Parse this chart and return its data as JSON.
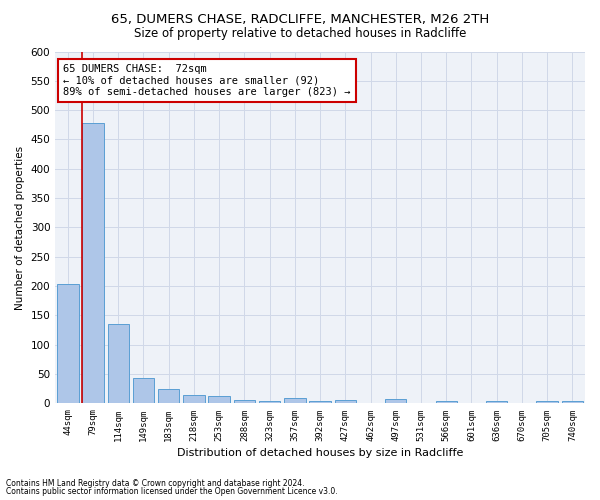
{
  "title_line1": "65, DUMERS CHASE, RADCLIFFE, MANCHESTER, M26 2TH",
  "title_line2": "Size of property relative to detached houses in Radcliffe",
  "xlabel": "Distribution of detached houses by size in Radcliffe",
  "ylabel": "Number of detached properties",
  "footnote1": "Contains HM Land Registry data © Crown copyright and database right 2024.",
  "footnote2": "Contains public sector information licensed under the Open Government Licence v3.0.",
  "categories": [
    "44sqm",
    "79sqm",
    "114sqm",
    "149sqm",
    "183sqm",
    "218sqm",
    "253sqm",
    "288sqm",
    "323sqm",
    "357sqm",
    "392sqm",
    "427sqm",
    "462sqm",
    "497sqm",
    "531sqm",
    "566sqm",
    "601sqm",
    "636sqm",
    "670sqm",
    "705sqm",
    "740sqm"
  ],
  "values": [
    203,
    478,
    135,
    43,
    25,
    15,
    12,
    6,
    5,
    10,
    5,
    6,
    0,
    8,
    0,
    5,
    0,
    5,
    0,
    5,
    5
  ],
  "bar_color": "#aec6e8",
  "bar_edge_color": "#5a9fd4",
  "annotation_title": "65 DUMERS CHASE:  72sqm",
  "annotation_line2": "← 10% of detached houses are smaller (92)",
  "annotation_line3": "89% of semi-detached houses are larger (823) →",
  "annotation_box_color": "#ffffff",
  "annotation_box_edge": "#cc0000",
  "marker_line_color": "#cc0000",
  "red_line_x": 0.575,
  "ylim": [
    0,
    600
  ],
  "yticks": [
    0,
    50,
    100,
    150,
    200,
    250,
    300,
    350,
    400,
    450,
    500,
    550,
    600
  ],
  "grid_color": "#d0d8e8",
  "bg_color": "#eef2f8",
  "title_fontsize": 9.5,
  "subtitle_fontsize": 8.5,
  "ann_fontsize": 7.5,
  "xlabel_fontsize": 8,
  "ylabel_fontsize": 7.5,
  "footnote_fontsize": 5.5
}
